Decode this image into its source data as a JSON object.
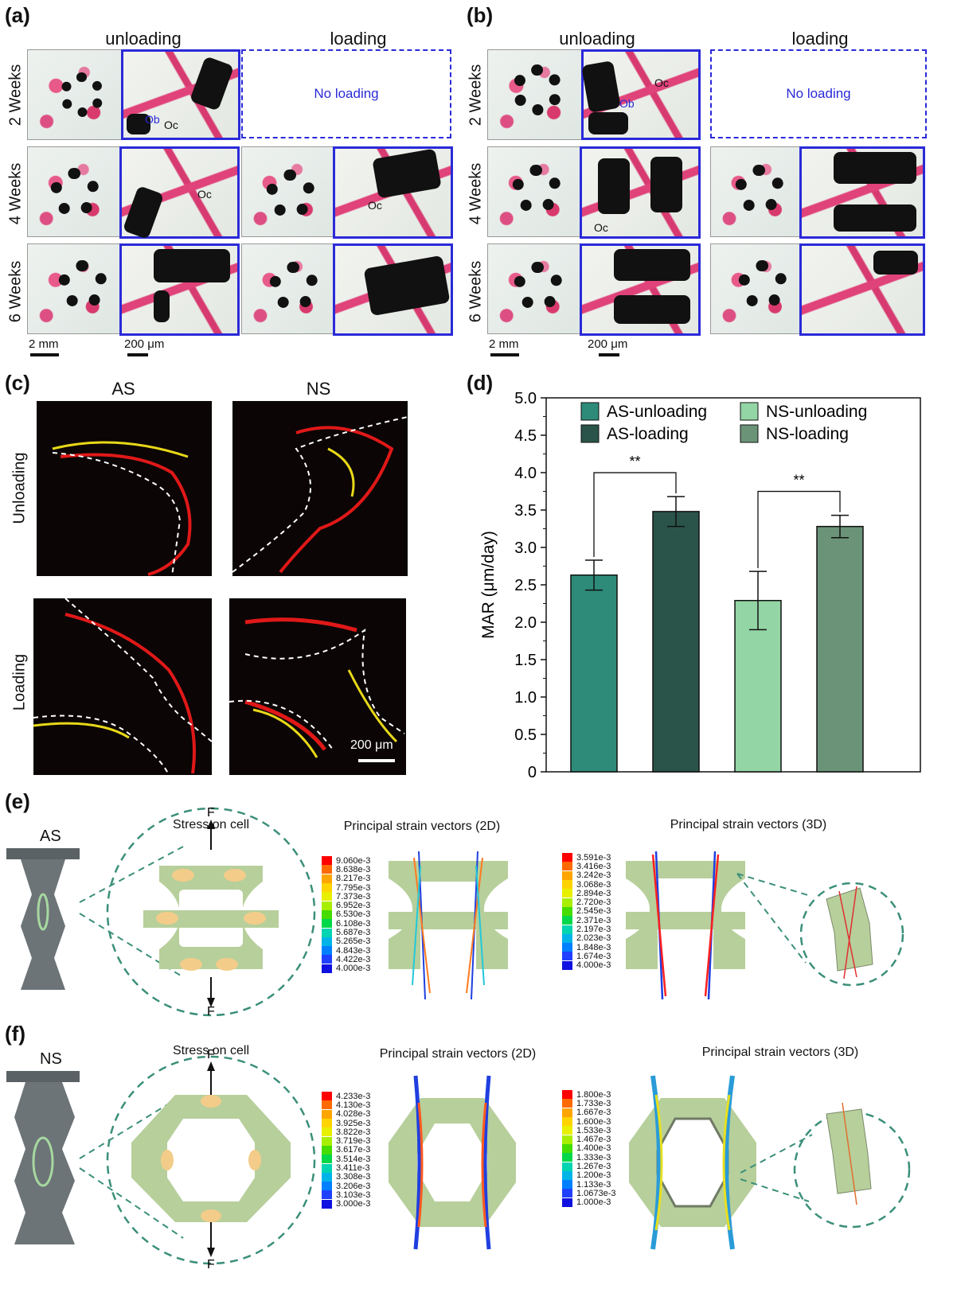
{
  "panels": {
    "a": {
      "label": "(a)",
      "col1": "unloading",
      "col2": "loading",
      "rows": [
        "2 Weeks",
        "4 Weeks",
        "6 Weeks"
      ],
      "no_loading": "No loading",
      "scale1": "2 mm",
      "scale2": "200 μm",
      "ann": {
        "ob": "Ob",
        "oc": "Oc"
      }
    },
    "b": {
      "label": "(b)",
      "col1": "unloading",
      "col2": "loading",
      "rows": [
        "2 Weeks",
        "4 Weeks",
        "6 Weeks"
      ],
      "no_loading": "No loading",
      "scale1": "2 mm",
      "scale2": "200 μm",
      "ann": {
        "ob": "Ob",
        "oc": "Oc"
      }
    },
    "c": {
      "label": "(c)",
      "col1": "AS",
      "col2": "NS",
      "row1": "Unloading",
      "row2": "Loading",
      "scale": "200 μm"
    },
    "d": {
      "label": "(d)"
    },
    "e": {
      "label": "(e)",
      "model": "AS",
      "t1": "Stress on cell",
      "t2": "Principal strain vectors (2D)",
      "t3": "Principal strain vectors (3D)",
      "force": "F",
      "scale2d": [
        "9.060e-3",
        "8.638e-3",
        "8.217e-3",
        "7.795e-3",
        "7.373e-3",
        "6.952e-3",
        "6.530e-3",
        "6.108e-3",
        "5.687e-3",
        "5.265e-3",
        "4.843e-3",
        "4.422e-3",
        "4.000e-3"
      ],
      "scale3d": [
        "3.591e-3",
        "3.416e-3",
        "3.242e-3",
        "3.068e-3",
        "2.894e-3",
        "2.720e-3",
        "2.545e-3",
        "2.371e-3",
        "2.197e-3",
        "2.023e-3",
        "1.848e-3",
        "1.674e-3",
        "4.000e-3"
      ]
    },
    "f": {
      "label": "(f)",
      "model": "NS",
      "t1": "Stress on cell",
      "t2": "Principal strain vectors (2D)",
      "t3": "Principal strain vectors (3D)",
      "force": "F",
      "scale2d": [
        "4.233e-3",
        "4.130e-3",
        "4.028e-3",
        "3.925e-3",
        "3.822e-3",
        "3.719e-3",
        "3.617e-3",
        "3.514e-3",
        "3.411e-3",
        "3.308e-3",
        "3.206e-3",
        "3.103e-3",
        "3.000e-3"
      ],
      "scale3d": [
        "1.800e-3",
        "1.733e-3",
        "1.667e-3",
        "1.600e-3",
        "1.533e-3",
        "1.467e-3",
        "1.400e-3",
        "1.333e-3",
        "1.267e-3",
        "1.200e-3",
        "1.133e-3",
        "1.0673e-3",
        "1.000e-3"
      ]
    }
  },
  "scale_colors": [
    "#ff0000",
    "#ff6a00",
    "#ffa500",
    "#ffd400",
    "#e8f000",
    "#a8ee00",
    "#46dc00",
    "#00d84a",
    "#00d4b0",
    "#00b4e8",
    "#0080ff",
    "#2040ff",
    "#1010e0"
  ],
  "chart_data": {
    "type": "bar",
    "categories": [
      "AS-unloading",
      "AS-loading",
      "NS-unloading",
      "NS-loading"
    ],
    "values": [
      2.63,
      3.48,
      2.29,
      3.28
    ],
    "errors": [
      0.2,
      0.2,
      0.39,
      0.15
    ],
    "colors": [
      "#2e8b79",
      "#2a5449",
      "#93d5a5",
      "#6b9378"
    ],
    "legend": [
      "AS-unloading",
      "AS-loading",
      "NS-unloading",
      "NS-loading"
    ],
    "ylabel": "MAR (μm/day)",
    "ylim": [
      0,
      5.0
    ],
    "yticks": [
      "0",
      "0.5",
      "1.0",
      "1.5",
      "2.0",
      "2.5",
      "3.0",
      "3.5",
      "4.0",
      "4.5",
      "5.0"
    ],
    "significance": [
      {
        "pair": [
          0,
          1
        ],
        "label": "**"
      },
      {
        "pair": [
          2,
          3
        ],
        "label": "**"
      }
    ],
    "legend_placement": "top"
  }
}
